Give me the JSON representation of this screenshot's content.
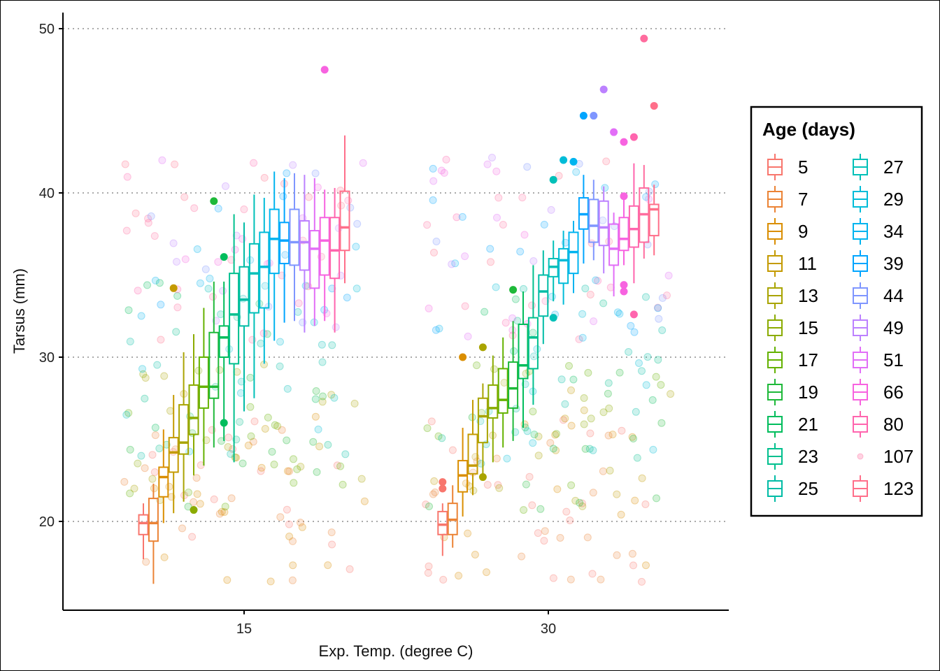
{
  "chart_data": {
    "type": "box",
    "xlabel": "Exp. Temp. (degree C)",
    "ylabel": "Tarsus (mm)",
    "x_ticks": [
      "15",
      "30"
    ],
    "y_ticks": [
      20,
      30,
      40,
      50
    ],
    "ylim": [
      14.5,
      51
    ],
    "grid": "horizontal dotted",
    "legend": {
      "title": "Age (days)",
      "position": "right",
      "entries": [
        "5",
        "7",
        "9",
        "11",
        "13",
        "15",
        "17",
        "19",
        "21",
        "23",
        "25",
        "27",
        "29",
        "34",
        "39",
        "44",
        "49",
        "51",
        "66",
        "80",
        "107",
        "123"
      ]
    },
    "groups": [
      {
        "temp": "15",
        "boxes": [
          {
            "age": "5",
            "q1": 19.2,
            "median": 19.9,
            "q3": 20.4,
            "lower": 17.7,
            "upper": 21.1,
            "outliers": []
          },
          {
            "age": "7",
            "q1": 18.8,
            "median": 19.9,
            "q3": 21.4,
            "lower": 16.2,
            "upper": 22.3,
            "outliers": []
          },
          {
            "age": "9",
            "q1": 21.5,
            "median": 22.7,
            "q3": 23.3,
            "lower": 19.9,
            "upper": 25.6,
            "outliers": []
          },
          {
            "age": "11",
            "q1": 23.0,
            "median": 24.2,
            "q3": 25.1,
            "lower": 20.5,
            "upper": 27.7,
            "outliers": [
              34.2
            ]
          },
          {
            "age": "13",
            "q1": 24.1,
            "median": 24.8,
            "q3": 27.1,
            "lower": 21.2,
            "upper": 30.3,
            "outliers": []
          },
          {
            "age": "15",
            "q1": 25.3,
            "median": 26.3,
            "q3": 28.3,
            "lower": 22.8,
            "upper": 31.4,
            "outliers": [
              20.7
            ]
          },
          {
            "age": "17",
            "q1": 26.9,
            "median": 28.2,
            "q3": 30.0,
            "lower": 23.4,
            "upper": 33.0,
            "outliers": []
          },
          {
            "age": "19",
            "q1": 27.5,
            "median": 28.2,
            "q3": 31.5,
            "lower": 24.5,
            "upper": 34.6,
            "outliers": [
              39.5
            ]
          },
          {
            "age": "21",
            "q1": 30.0,
            "median": 31.2,
            "q3": 31.9,
            "lower": 24.9,
            "upper": 34.6,
            "outliers": [
              36.1,
              26.0
            ]
          },
          {
            "age": "23",
            "q1": 29.6,
            "median": 32.6,
            "q3": 35.1,
            "lower": 23.6,
            "upper": 38.7,
            "outliers": []
          },
          {
            "age": "25",
            "q1": 31.9,
            "median": 33.5,
            "q3": 35.5,
            "lower": 26.7,
            "upper": 38.2,
            "outliers": []
          },
          {
            "age": "27",
            "q1": 32.7,
            "median": 35.1,
            "q3": 36.9,
            "lower": 27.5,
            "upper": 39.9,
            "outliers": []
          },
          {
            "age": "29",
            "q1": 33.0,
            "median": 35.5,
            "q3": 37.6,
            "lower": 29.6,
            "upper": 39.7,
            "outliers": []
          },
          {
            "age": "34",
            "q1": 35.1,
            "median": 37.2,
            "q3": 39.0,
            "lower": 31.0,
            "upper": 41.3,
            "outliers": []
          },
          {
            "age": "39",
            "q1": 35.7,
            "median": 37.1,
            "q3": 38.2,
            "lower": 32.1,
            "upper": 40.9,
            "outliers": []
          },
          {
            "age": "44",
            "q1": 35.6,
            "median": 37.0,
            "q3": 39.0,
            "lower": 32.2,
            "upper": 41.2,
            "outliers": []
          },
          {
            "age": "49",
            "q1": 35.3,
            "median": 37.0,
            "q3": 38.3,
            "lower": 31.5,
            "upper": 41.1,
            "outliers": []
          },
          {
            "age": "51",
            "q1": 34.2,
            "median": 36.6,
            "q3": 37.7,
            "lower": 31.9,
            "upper": 40.9,
            "outliers": []
          },
          {
            "age": "66",
            "q1": 35.0,
            "median": 37.1,
            "q3": 38.5,
            "lower": 32.2,
            "upper": 40.2,
            "outliers": [
              47.5
            ]
          },
          {
            "age": "80",
            "q1": 34.8,
            "median": 36.5,
            "q3": 38.5,
            "lower": 31.5,
            "upper": 40.3,
            "outliers": []
          },
          {
            "age": "123",
            "q1": 36.5,
            "median": 37.9,
            "q3": 40.1,
            "lower": 34.5,
            "upper": 43.5,
            "outliers": []
          }
        ]
      },
      {
        "temp": "30",
        "boxes": [
          {
            "age": "5",
            "q1": 19.2,
            "median": 19.8,
            "q3": 20.6,
            "lower": 17.9,
            "upper": 21.1,
            "outliers": [
              22.4,
              22.0
            ]
          },
          {
            "age": "7",
            "q1": 19.2,
            "median": 20.1,
            "q3": 21.1,
            "lower": 18.4,
            "upper": 22.2,
            "outliers": []
          },
          {
            "age": "9",
            "q1": 21.8,
            "median": 22.8,
            "q3": 23.7,
            "lower": 20.3,
            "upper": 25.7,
            "outliers": [
              30.0
            ]
          },
          {
            "age": "11",
            "q1": 22.9,
            "median": 23.4,
            "q3": 25.3,
            "lower": 21.6,
            "upper": 27.4,
            "outliers": []
          },
          {
            "age": "13",
            "q1": 24.8,
            "median": 26.4,
            "q3": 27.5,
            "lower": 22.8,
            "upper": 28.4,
            "outliers": [
              30.6,
              22.7
            ]
          },
          {
            "age": "15",
            "q1": 26.3,
            "median": 26.9,
            "q3": 28.3,
            "lower": 23.6,
            "upper": 30.1,
            "outliers": []
          },
          {
            "age": "17",
            "q1": 26.6,
            "median": 27.4,
            "q3": 29.3,
            "lower": 24.5,
            "upper": 31.2,
            "outliers": []
          },
          {
            "age": "19",
            "q1": 26.9,
            "median": 28.1,
            "q3": 29.7,
            "lower": 24.9,
            "upper": 32.2,
            "outliers": [
              34.1
            ]
          },
          {
            "age": "21",
            "q1": 28.7,
            "median": 29.5,
            "q3": 32.0,
            "lower": 25.7,
            "upper": 34.0,
            "outliers": []
          },
          {
            "age": "23",
            "q1": 29.3,
            "median": 31.2,
            "q3": 32.4,
            "lower": 27.1,
            "upper": 35.6,
            "outliers": []
          },
          {
            "age": "25",
            "q1": 32.5,
            "median": 34.0,
            "q3": 35.0,
            "lower": 30.8,
            "upper": 36.5,
            "outliers": []
          },
          {
            "age": "27",
            "q1": 34.9,
            "median": 35.5,
            "q3": 36.0,
            "lower": 33.4,
            "upper": 37.1,
            "outliers": [
              40.8,
              32.4
            ]
          },
          {
            "age": "29",
            "q1": 34.5,
            "median": 35.9,
            "q3": 36.6,
            "lower": 33.2,
            "upper": 37.7,
            "outliers": [
              42.0
            ]
          },
          {
            "age": "34",
            "q1": 35.1,
            "median": 36.4,
            "q3": 37.6,
            "lower": 33.9,
            "upper": 38.3,
            "outliers": [
              41.9
            ]
          },
          {
            "age": "39",
            "q1": 37.8,
            "median": 38.7,
            "q3": 39.7,
            "lower": 35.7,
            "upper": 41.1,
            "outliers": [
              44.7
            ]
          },
          {
            "age": "44",
            "q1": 37.0,
            "median": 38.0,
            "q3": 39.6,
            "lower": 35.9,
            "upper": 40.8,
            "outliers": [
              44.7
            ]
          },
          {
            "age": "49",
            "q1": 36.8,
            "median": 37.9,
            "q3": 39.5,
            "lower": 35.1,
            "upper": 40.4,
            "outliers": [
              46.3
            ]
          },
          {
            "age": "51",
            "q1": 35.6,
            "median": 36.6,
            "q3": 38.1,
            "lower": 33.7,
            "upper": 38.8,
            "outliers": [
              43.7
            ]
          },
          {
            "age": "66",
            "q1": 36.5,
            "median": 37.2,
            "q3": 38.5,
            "lower": 35.6,
            "upper": 39.7,
            "outliers": [
              43.1,
              39.8,
              34.4,
              34.0
            ]
          },
          {
            "age": "80",
            "q1": 36.7,
            "median": 37.8,
            "q3": 39.2,
            "lower": 34.5,
            "upper": 41.8,
            "outliers": [
              43.4,
              32.6
            ]
          },
          {
            "age": "107",
            "q1": 37.0,
            "median": 38.7,
            "q3": 40.3,
            "lower": 36.0,
            "upper": 41.7,
            "outliers": [
              49.4
            ]
          },
          {
            "age": "123",
            "q1": 37.4,
            "median": 39.0,
            "q3": 39.3,
            "lower": 36.2,
            "upper": 40.5,
            "outliers": [
              45.3
            ]
          }
        ]
      }
    ],
    "jittered_points_by_age_band": [
      {
        "age_range": "5-9",
        "y_min": 16.2,
        "y_max": 26.4
      },
      {
        "age_range": "11-19",
        "y_min": 20.5,
        "y_max": 29.8
      },
      {
        "age_range": "21-29",
        "y_min": 23.5,
        "y_max": 34.6
      },
      {
        "age_range": "34-123",
        "y_min": 31.0,
        "y_max": 49.4
      }
    ]
  },
  "colors": {
    "5": "#F8766D",
    "7": "#EB8335",
    "9": "#DA8E00",
    "11": "#C49A00",
    "13": "#A9A400",
    "15": "#8BAB00",
    "17": "#64B200",
    "19": "#1EB939",
    "21": "#00BD5C",
    "23": "#00C08E",
    "25": "#00BCA6",
    "27": "#00C0B8",
    "29": "#00BCD8",
    "34": "#00B4EF",
    "39": "#00A5FF",
    "44": "#7F96FF",
    "49": "#BC81FF",
    "51": "#E26EF7",
    "66": "#F763E0",
    "80": "#FF65AE",
    "107": "#FF6C9E",
    "123": "#FF6F8A"
  }
}
